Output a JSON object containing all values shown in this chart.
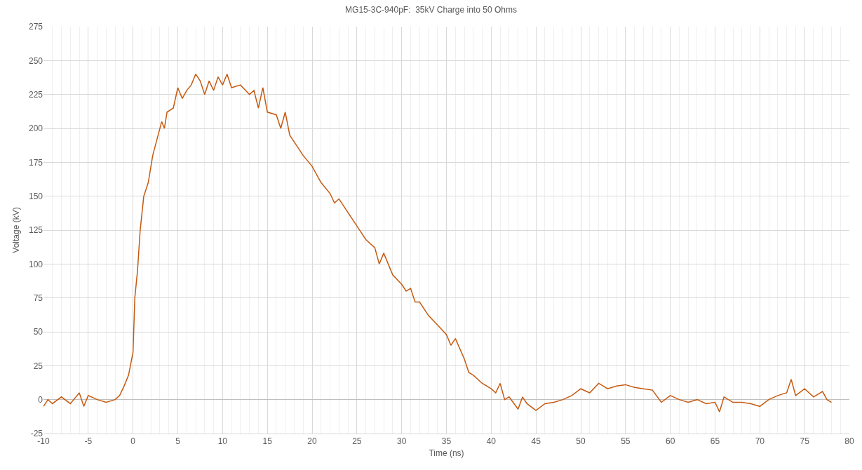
{
  "chart_data": {
    "type": "line",
    "title": "MG15-3C-940pF:  35kV Charge into 50 Ohms",
    "xlabel": "Time (ns)",
    "ylabel": "Voltage (kV)",
    "x": [
      -10,
      -9.5,
      -9,
      -8,
      -7,
      -6,
      -5.5,
      -5,
      -4,
      -3,
      -2,
      -1.5,
      -1,
      -0.5,
      0,
      0.2,
      0.5,
      0.8,
      1.2,
      1.7,
      2.2,
      2.8,
      3.2,
      3.5,
      3.8,
      4.5,
      5,
      5.5,
      6,
      6.5,
      7,
      7.5,
      8,
      8.5,
      9,
      9.5,
      10,
      10.5,
      11,
      12,
      13,
      13.5,
      14,
      14.5,
      15,
      16,
      16.5,
      17,
      17.5,
      18,
      19,
      20,
      21,
      22,
      22.5,
      23,
      24,
      25,
      26,
      27,
      27.5,
      28,
      29,
      30,
      30.5,
      31,
      31.5,
      32,
      33,
      34,
      35,
      35.5,
      36,
      37,
      37.5,
      38,
      39,
      40,
      40.5,
      41,
      41.5,
      42,
      43,
      43.5,
      44,
      45,
      46,
      47,
      48,
      49,
      50,
      51,
      52,
      53,
      54,
      55,
      56,
      57,
      58,
      59,
      60,
      61,
      62,
      63,
      64,
      65,
      65.5,
      66,
      67,
      68,
      69,
      70,
      71,
      72,
      73,
      73.5,
      74,
      75,
      76,
      77,
      77.5,
      78
    ],
    "series": [
      {
        "color": "#c55a11",
        "values": [
          -5,
          0,
          -3,
          2,
          -3,
          5,
          -5,
          3,
          0,
          -2,
          0,
          3,
          10,
          18,
          35,
          75,
          95,
          125,
          150,
          160,
          180,
          195,
          205,
          200,
          212,
          215,
          230,
          222,
          228,
          232,
          240,
          235,
          225,
          235,
          228,
          238,
          232,
          240,
          230,
          232,
          225,
          228,
          215,
          230,
          212,
          210,
          200,
          212,
          195,
          190,
          180,
          172,
          160,
          152,
          145,
          148,
          138,
          128,
          118,
          112,
          100,
          108,
          92,
          85,
          80,
          82,
          72,
          72,
          62,
          55,
          48,
          40,
          45,
          30,
          20,
          18,
          12,
          8,
          5,
          12,
          0,
          2,
          -7,
          2,
          -3,
          -8,
          -3,
          -2,
          0,
          3,
          8,
          5,
          12,
          8,
          10,
          11,
          9,
          8,
          7,
          -2,
          3,
          0,
          -2,
          0,
          -3,
          -2,
          -9,
          2,
          -2,
          -2,
          -3,
          -5,
          0,
          3,
          5,
          15,
          3,
          8,
          2,
          6,
          0,
          -2
        ]
      }
    ],
    "xlim": [
      -10,
      80
    ],
    "xticks": [
      -10,
      -5,
      0,
      5,
      10,
      15,
      20,
      25,
      30,
      35,
      40,
      45,
      50,
      55,
      60,
      65,
      70,
      75,
      80
    ],
    "ylim": [
      -25,
      275
    ],
    "yticks": [
      -25,
      0,
      25,
      50,
      75,
      100,
      125,
      150,
      175,
      200,
      225,
      250,
      275
    ],
    "grid": true,
    "marker": "none",
    "line_style": "solid"
  }
}
